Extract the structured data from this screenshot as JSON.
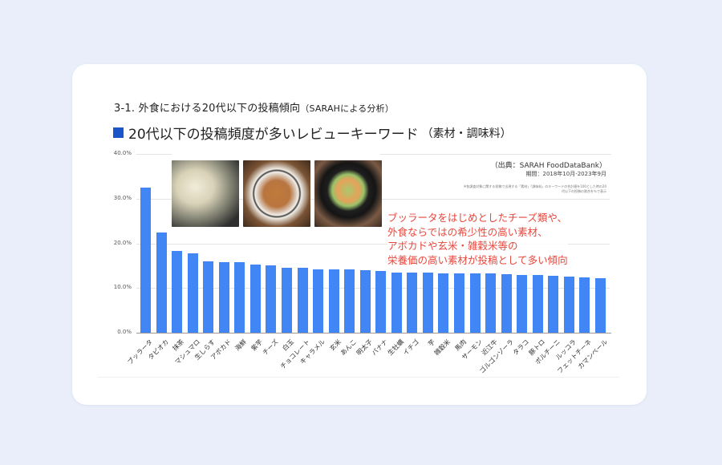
{
  "slide": {
    "section_title": "3-1. 外食における20代以下の投稿傾向",
    "section_subtitle": "（SARAHによる分析）",
    "title": "20代以下の投稿頻度が多いレビューキーワード",
    "title_paren": "（素材・調味料）",
    "source": "（出典：SARAH FoodDataBank）",
    "period": "期間：2018年10月-2023年9月",
    "note": "※各調査対象に関する投稿で出現する「素材」「調味料」のキーワードの合計値を100とした時の20代以下の投稿の割合を％で表示",
    "callout_lines": [
      "ブッラータをはじめとしたチーズ類や、",
      "外食ならではの希少性の高い素材、",
      "アボカドや玄米・雑穀米等の",
      "栄養価の高い素材が投稿として多い傾向"
    ],
    "photos": [
      "oyster-photo",
      "curry-rice-photo",
      "vegetable-bowl-photo"
    ]
  },
  "colors": {
    "bar": "#4285f4",
    "title_square": "#1a56c8",
    "callout": "#e8473c",
    "background": "#e9eefa"
  },
  "chart_data": {
    "type": "bar",
    "title": "20代以下の投稿頻度が多いレビューキーワード（素材・調味料）",
    "xlabel": "",
    "ylabel": "",
    "ylim": [
      0,
      40
    ],
    "yticks": [
      "0.0%",
      "10.0%",
      "20.0%",
      "30.0%",
      "40.0%"
    ],
    "grid": true,
    "legend": null,
    "categories": [
      "ブッラータ",
      "タピオカ",
      "抹茶",
      "マシュマロ",
      "生しらす",
      "アボカド",
      "海鮮",
      "紫芋",
      "チーズ",
      "白玉",
      "チョコレート",
      "キャラメル",
      "玄米",
      "あんこ",
      "明太子",
      "バナナ",
      "生牡蠣",
      "イチゴ",
      "芋",
      "雑穀米",
      "馬肉",
      "サーモン",
      "近江牛",
      "ゴルゴンゾーラ",
      "タラコ",
      "豚トロ",
      "ポルチーニ",
      "ルッコラ",
      "フェットチーネ",
      "カマンベール"
    ],
    "values": [
      32.5,
      22.5,
      18.3,
      17.8,
      15.9,
      15.8,
      15.7,
      15.2,
      15.1,
      14.6,
      14.5,
      14.2,
      14.2,
      14.1,
      14.0,
      13.9,
      13.5,
      13.4,
      13.4,
      13.3,
      13.3,
      13.2,
      13.2,
      13.1,
      13.0,
      13.0,
      12.8,
      12.5,
      12.4,
      12.2
    ]
  }
}
